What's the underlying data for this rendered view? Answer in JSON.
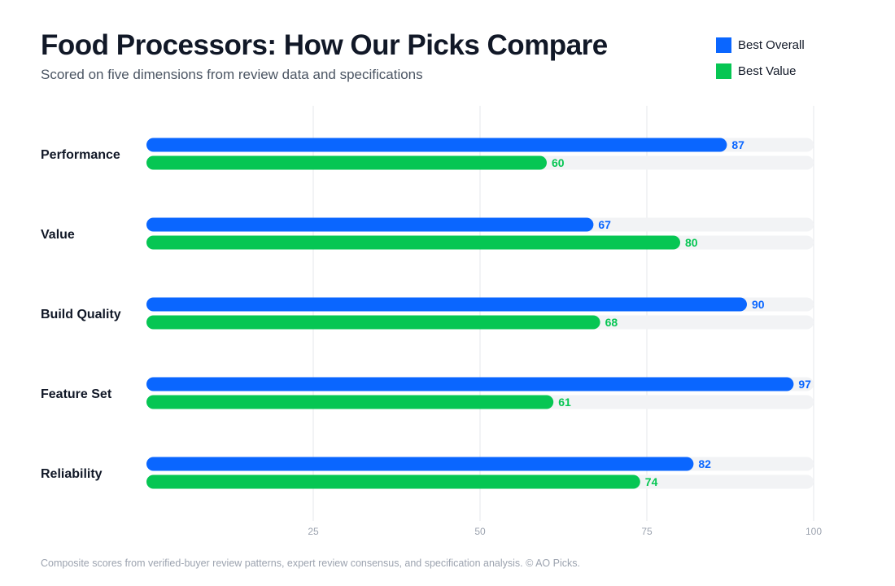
{
  "header": {
    "title": "Food Processors: How Our Picks Compare",
    "subtitle": "Scored on five dimensions from review data and specifications"
  },
  "legend": [
    {
      "label": "Best Overall",
      "color": "#0a66ff"
    },
    {
      "label": "Best Value",
      "color": "#06c653"
    }
  ],
  "footnote": "Composite scores from verified-buyer review patterns, expert review consensus, and specification analysis. © AO Picks.",
  "chart_data": {
    "type": "bar",
    "orientation": "horizontal",
    "title": "Food Processors: How Our Picks Compare",
    "subtitle": "Scored on five dimensions from review data and specifications",
    "categories": [
      "Performance",
      "Value",
      "Build Quality",
      "Feature Set",
      "Reliability"
    ],
    "series": [
      {
        "name": "Best Overall",
        "color": "#0a66ff",
        "values": [
          87,
          67,
          90,
          97,
          82
        ]
      },
      {
        "name": "Best Value",
        "color": "#06c653",
        "values": [
          60,
          80,
          68,
          61,
          74
        ]
      }
    ],
    "xlim": [
      0,
      100
    ],
    "xticks": [
      25,
      50,
      75,
      100
    ],
    "grid": true,
    "legend_position": "top-right",
    "track_color": "#f2f3f5",
    "grid_color": "#e5e7eb"
  }
}
